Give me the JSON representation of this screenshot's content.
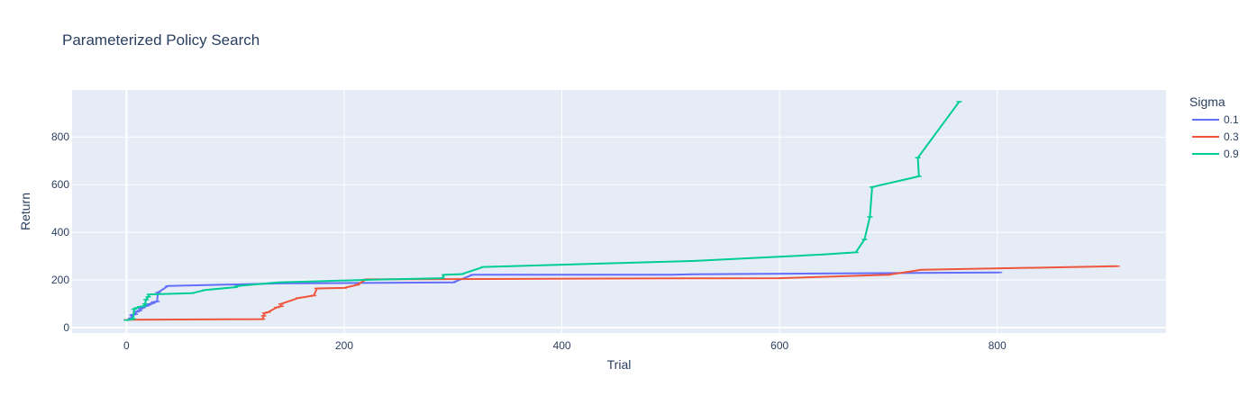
{
  "chart_data": {
    "type": "line",
    "title": "Parameterized Policy Search",
    "xlabel": "Trial",
    "ylabel": "Return",
    "xlim": [
      -50,
      955
    ],
    "ylim": [
      -22,
      997
    ],
    "x_ticks": [
      0,
      200,
      400,
      600,
      800
    ],
    "y_ticks": [
      0,
      200,
      400,
      600,
      800
    ],
    "grid": true,
    "legend": {
      "title": "Sigma",
      "placement": "right"
    },
    "series": [
      {
        "name": "0.1",
        "color": "#636efa",
        "points": [
          [
            0,
            32
          ],
          [
            3,
            34
          ],
          [
            4,
            40
          ],
          [
            5,
            52
          ],
          [
            6,
            55
          ],
          [
            8,
            57
          ],
          [
            9,
            67
          ],
          [
            10,
            68
          ],
          [
            12,
            72
          ],
          [
            13,
            80
          ],
          [
            15,
            84
          ],
          [
            16,
            89
          ],
          [
            18,
            91
          ],
          [
            20,
            95
          ],
          [
            22,
            100
          ],
          [
            24,
            103
          ],
          [
            25,
            108
          ],
          [
            28,
            110
          ],
          [
            29,
            148
          ],
          [
            38,
            175
          ],
          [
            140,
            186
          ],
          [
            300,
            190
          ],
          [
            318,
            222
          ],
          [
            500,
            222
          ],
          [
            520,
            224
          ],
          [
            802,
            232
          ]
        ]
      },
      {
        "name": "0.3",
        "color": "#ef553b",
        "points": [
          [
            0,
            33
          ],
          [
            5,
            34
          ],
          [
            125,
            36
          ],
          [
            126,
            50
          ],
          [
            127,
            62
          ],
          [
            130,
            65
          ],
          [
            138,
            85
          ],
          [
            142,
            90
          ],
          [
            142,
            100
          ],
          [
            158,
            125
          ],
          [
            172,
            135
          ],
          [
            175,
            165
          ],
          [
            200,
            167
          ],
          [
            212,
            180
          ],
          [
            220,
            203
          ],
          [
            510,
            207
          ],
          [
            600,
            208
          ],
          [
            700,
            222
          ],
          [
            730,
            243
          ],
          [
            910,
            258
          ]
        ]
      },
      {
        "name": "0.9",
        "color": "#00cc96",
        "points": [
          [
            0,
            32
          ],
          [
            5,
            35
          ],
          [
            6,
            38
          ],
          [
            7,
            78
          ],
          [
            9,
            83
          ],
          [
            12,
            88
          ],
          [
            16,
            90
          ],
          [
            17,
            100
          ],
          [
            18,
            118
          ],
          [
            20,
            130
          ],
          [
            21,
            140
          ],
          [
            60,
            145
          ],
          [
            72,
            158
          ],
          [
            100,
            170
          ],
          [
            102,
            175
          ],
          [
            140,
            190
          ],
          [
            222,
            201
          ],
          [
            290,
            208
          ],
          [
            292,
            222
          ],
          [
            308,
            225
          ],
          [
            328,
            255
          ],
          [
            520,
            280
          ],
          [
            640,
            307
          ],
          [
            670,
            316
          ],
          [
            678,
            370
          ],
          [
            683,
            465
          ],
          [
            685,
            590
          ],
          [
            728,
            635
          ],
          [
            727,
            713
          ],
          [
            765,
            948
          ]
        ]
      }
    ]
  }
}
